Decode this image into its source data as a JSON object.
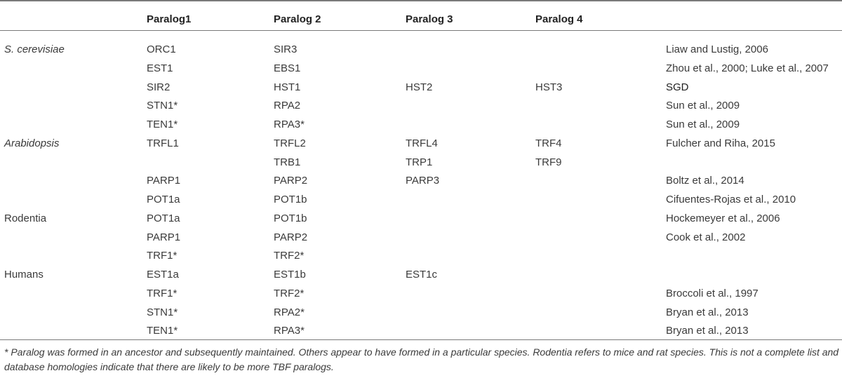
{
  "headers": [
    "",
    "Paralog1",
    "Paralog 2",
    "Paralog 3",
    "Paralog 4",
    ""
  ],
  "rows": [
    {
      "species": "S. cerevisiae",
      "species_italic": true,
      "p1": "ORC1",
      "p2": "SIR3",
      "p3": "",
      "p4": "",
      "ref": "Liaw and Lustig, 2006"
    },
    {
      "species": "",
      "species_italic": false,
      "p1": "EST1",
      "p2": "EBS1",
      "p3": "",
      "p4": "",
      "ref": "Zhou et al., 2000; Luke et al., 2007"
    },
    {
      "species": "",
      "species_italic": false,
      "p1": "SIR2",
      "p2": "HST1",
      "p3": "HST2",
      "p4": "HST3",
      "ref": "SGD"
    },
    {
      "species": "",
      "species_italic": false,
      "p1": "STN1*",
      "p2": "RPA2",
      "p3": "",
      "p4": "",
      "ref": "Sun et al., 2009"
    },
    {
      "species": "",
      "species_italic": false,
      "p1": "TEN1*",
      "p2": "RPA3*",
      "p3": "",
      "p4": "",
      "ref": "Sun et al., 2009"
    },
    {
      "species": "Arabidopsis",
      "species_italic": true,
      "p1": "TRFL1",
      "p2": "TRFL2",
      "p3": "TRFL4",
      "p4": "TRF4",
      "ref": "Fulcher and Riha, 2015"
    },
    {
      "species": "",
      "species_italic": false,
      "p1": "",
      "p2": "TRB1",
      "p3": "TRP1",
      "p4": "TRF9",
      "ref": ""
    },
    {
      "species": "",
      "species_italic": false,
      "p1": "PARP1",
      "p2": "PARP2",
      "p3": "PARP3",
      "p4": "",
      "ref": "Boltz et al., 2014"
    },
    {
      "species": "",
      "species_italic": false,
      "p1": "POT1a",
      "p2": "POT1b",
      "p3": "",
      "p4": "",
      "ref": "Cifuentes-Rojas et al., 2010"
    },
    {
      "species": "Rodentia",
      "species_italic": false,
      "p1": "POT1a",
      "p2": "POT1b",
      "p3": "",
      "p4": "",
      "ref": "Hockemeyer et al., 2006"
    },
    {
      "species": "",
      "species_italic": false,
      "p1": "PARP1",
      "p2": "PARP2",
      "p3": "",
      "p4": "",
      "ref": "Cook et al., 2002"
    },
    {
      "species": "",
      "species_italic": false,
      "p1": "TRF1*",
      "p2": "TRF2*",
      "p3": "",
      "p4": "",
      "ref": ""
    },
    {
      "species": "Humans",
      "species_italic": false,
      "p1": "EST1a",
      "p2": "EST1b",
      "p3": "EST1c",
      "p4": "",
      "ref": ""
    },
    {
      "species": "",
      "species_italic": false,
      "p1": "TRF1*",
      "p2": "TRF2*",
      "p3": "",
      "p4": "",
      "ref": "Broccoli et al., 1997"
    },
    {
      "species": "",
      "species_italic": false,
      "p1": "STN1*",
      "p2": "RPA2*",
      "p3": "",
      "p4": "",
      "ref": "Bryan et al., 2013"
    },
    {
      "species": "",
      "species_italic": false,
      "p1": "TEN1*",
      "p2": "RPA3*",
      "p3": "",
      "p4": "",
      "ref": "Bryan et al., 2013"
    }
  ],
  "footnote": "* Paralog was formed in an ancestor and subsequently maintained. Others appear to have formed in a particular species. Rodentia refers to mice and rat species. This is not a complete list and database homologies indicate that there are likely to be more TBF paralogs."
}
